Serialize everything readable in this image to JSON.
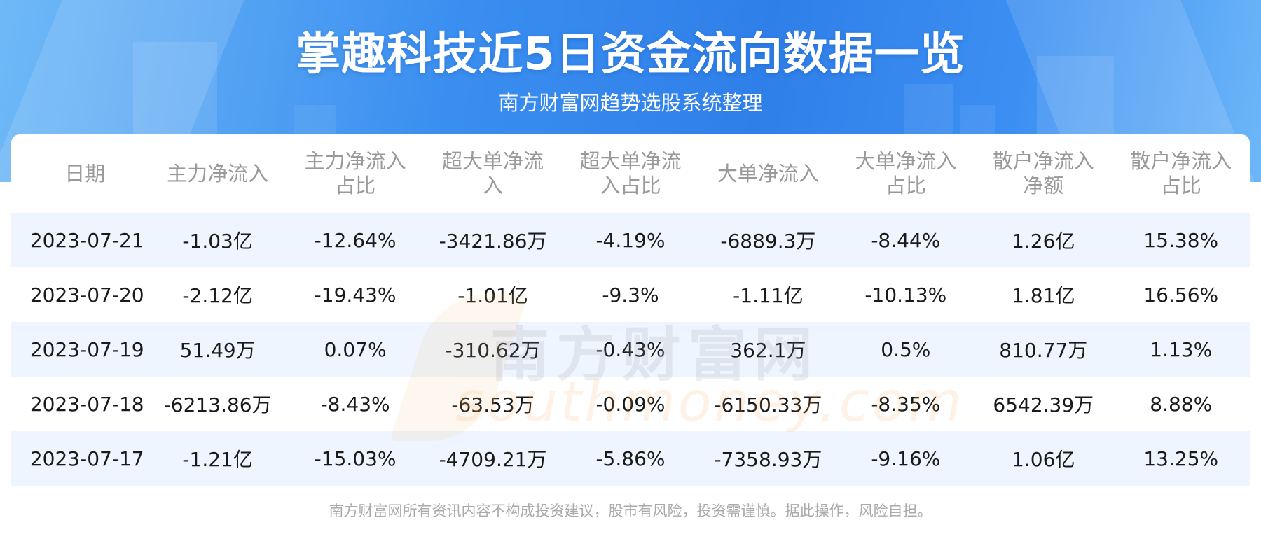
{
  "header": {
    "title": "掌趣科技近5日资金流向数据一览",
    "subtitle": "南方财富网趋势选股系统整理"
  },
  "watermark": {
    "cn": "南方财富网",
    "en": "southmoney.com"
  },
  "chart_data": {
    "type": "table",
    "columns": [
      [
        "日期"
      ],
      [
        "主力净流入"
      ],
      [
        "主力净流入",
        "占比"
      ],
      [
        "超大单净流",
        "入"
      ],
      [
        "超大单净流",
        "入占比"
      ],
      [
        "大单净流入"
      ],
      [
        "大单净流入",
        "占比"
      ],
      [
        "散户净流入",
        "净额"
      ],
      [
        "散户净流入",
        "占比"
      ]
    ],
    "rows": [
      [
        "2023-07-21",
        "-1.03亿",
        "-12.64%",
        "-3421.86万",
        "-4.19%",
        "-6889.3万",
        "-8.44%",
        "1.26亿",
        "15.38%"
      ],
      [
        "2023-07-20",
        "-2.12亿",
        "-19.43%",
        "-1.01亿",
        "-9.3%",
        "-1.11亿",
        "-10.13%",
        "1.81亿",
        "16.56%"
      ],
      [
        "2023-07-19",
        "51.49万",
        "0.07%",
        "-310.62万",
        "-0.43%",
        "362.1万",
        "0.5%",
        "810.77万",
        "1.13%"
      ],
      [
        "2023-07-18",
        "-6213.86万",
        "-8.43%",
        "-63.53万",
        "-0.09%",
        "-6150.33万",
        "-8.35%",
        "6542.39万",
        "8.88%"
      ],
      [
        "2023-07-17",
        "-1.21亿",
        "-15.03%",
        "-4709.21万",
        "-5.86%",
        "-7358.93万",
        "-9.16%",
        "1.06亿",
        "13.25%"
      ]
    ]
  },
  "footer": {
    "disclaimer": "南方财富网所有资讯内容不构成投资建议，股市有风险，投资需谨慎。据此操作，风险自担。"
  },
  "colors": {
    "header_gradient_mid": "#2f7fe9",
    "header_text": "#999999",
    "row_stripe": "#eef5ff",
    "bottom_rule": "#5a9be6"
  }
}
